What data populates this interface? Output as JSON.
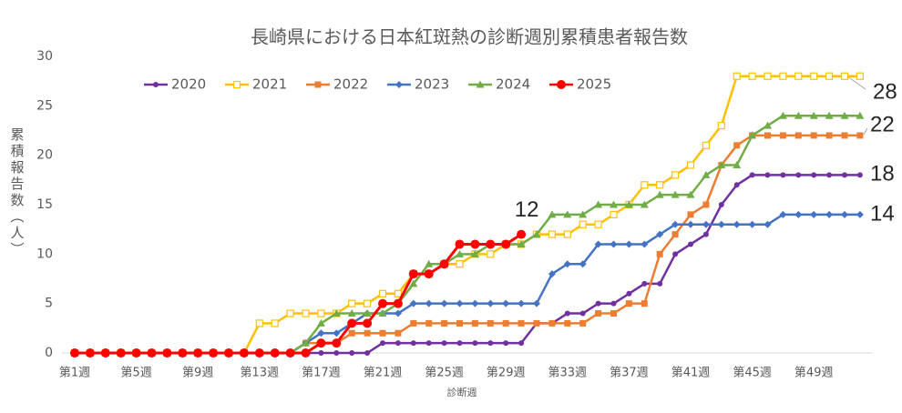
{
  "chart_data": {
    "type": "line",
    "title": "長崎県における日本紅斑熱の診断週別累積患者報告数",
    "x_label": "診断週",
    "y_label": "累積報告数（人）",
    "categories": [
      "第1週",
      null,
      null,
      null,
      "第5週",
      null,
      null,
      null,
      "第9週",
      null,
      null,
      null,
      "第13週",
      null,
      null,
      null,
      "第17週",
      null,
      null,
      null,
      "第21週",
      null,
      null,
      null,
      "第25週",
      null,
      null,
      null,
      "第29週",
      null,
      null,
      null,
      "第33週",
      null,
      null,
      null,
      "第37週",
      null,
      null,
      null,
      "第41週",
      null,
      null,
      null,
      "第45週",
      null,
      null,
      null,
      "第49週",
      null,
      null,
      null
    ],
    "ylim": [
      0,
      30
    ],
    "yticks": [
      0,
      5,
      10,
      15,
      20,
      25,
      30
    ],
    "grid": false,
    "legend": "top",
    "series": [
      {
        "name": "2020",
        "color": "#7030a0",
        "marker": "circle",
        "values": [
          0,
          0,
          0,
          0,
          0,
          0,
          0,
          0,
          0,
          0,
          0,
          0,
          0,
          0,
          0,
          0,
          0,
          0,
          0,
          0,
          1,
          1,
          1,
          1,
          1,
          1,
          1,
          1,
          1,
          1,
          3,
          3,
          4,
          4,
          5,
          5,
          6,
          7,
          7,
          10,
          11,
          12,
          15,
          17,
          18,
          18,
          18,
          18,
          18,
          18,
          18,
          18
        ]
      },
      {
        "name": "2021",
        "color": "#ffc000",
        "marker": "open-square",
        "values": [
          0,
          0,
          0,
          0,
          0,
          0,
          0,
          0,
          0,
          0,
          0,
          0,
          3,
          3,
          4,
          4,
          4,
          4,
          5,
          5,
          6,
          6,
          8,
          8,
          9,
          9,
          10,
          10,
          11,
          11,
          12,
          12,
          12,
          13,
          13,
          14,
          15,
          17,
          17,
          18,
          19,
          21,
          23,
          28,
          28,
          28,
          28,
          28,
          28,
          28,
          28,
          28
        ]
      },
      {
        "name": "2022",
        "color": "#ed7d31",
        "marker": "square",
        "values": [
          0,
          0,
          0,
          0,
          0,
          0,
          0,
          0,
          0,
          0,
          0,
          0,
          0,
          0,
          0,
          1,
          1,
          1,
          2,
          2,
          2,
          2,
          3,
          3,
          3,
          3,
          3,
          3,
          3,
          3,
          3,
          3,
          3,
          3,
          4,
          4,
          5,
          5,
          10,
          12,
          14,
          15,
          19,
          21,
          22,
          22,
          22,
          22,
          22,
          22,
          22,
          22
        ]
      },
      {
        "name": "2023",
        "color": "#4472c4",
        "marker": "diamond",
        "values": [
          0,
          0,
          0,
          0,
          0,
          0,
          0,
          0,
          0,
          0,
          0,
          0,
          0,
          0,
          0,
          1,
          2,
          2,
          3,
          4,
          4,
          4,
          5,
          5,
          5,
          5,
          5,
          5,
          5,
          5,
          5,
          8,
          9,
          9,
          11,
          11,
          11,
          11,
          12,
          13,
          13,
          13,
          13,
          13,
          13,
          13,
          14,
          14,
          14,
          14,
          14,
          14
        ]
      },
      {
        "name": "2024",
        "color": "#70ad47",
        "marker": "triangle",
        "values": [
          0,
          0,
          0,
          0,
          0,
          0,
          0,
          0,
          0,
          0,
          0,
          0,
          0,
          0,
          0,
          1,
          3,
          4,
          4,
          4,
          4,
          5,
          7,
          9,
          9,
          10,
          10,
          11,
          11,
          11,
          12,
          14,
          14,
          14,
          15,
          15,
          15,
          15,
          16,
          16,
          16,
          18,
          19,
          19,
          22,
          23,
          24,
          24,
          24,
          24,
          24,
          24
        ]
      },
      {
        "name": "2025",
        "color": "#ff0000",
        "marker": "circle-big",
        "values": [
          0,
          0,
          0,
          0,
          0,
          0,
          0,
          0,
          0,
          0,
          0,
          0,
          0,
          0,
          0,
          0,
          1,
          1,
          3,
          3,
          5,
          5,
          8,
          8,
          9,
          11,
          11,
          11,
          11,
          12,
          null,
          null,
          null,
          null,
          null,
          null,
          null,
          null,
          null,
          null,
          null,
          null,
          null,
          null,
          null,
          null,
          null,
          null,
          null,
          null,
          null,
          null
        ]
      }
    ]
  }
}
